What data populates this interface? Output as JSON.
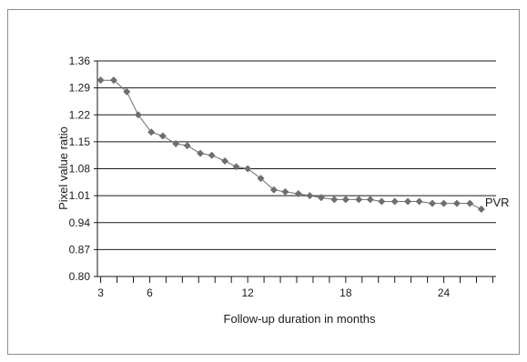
{
  "chart_data": {
    "type": "line",
    "title": "",
    "xlabel": "Follow-up duration in months",
    "ylabel": "Pixel value ratio",
    "xlim": [
      2.8,
      27.2
    ],
    "ylim": [
      0.8,
      1.36
    ],
    "x_tick_labels": [
      "3",
      "6",
      "12",
      "18",
      "24"
    ],
    "x_ticks": [
      3,
      6,
      12,
      18,
      24
    ],
    "y_tick_labels": [
      "0.80",
      "0.87",
      "0.94",
      "1.01",
      "1.08",
      "1.15",
      "1.22",
      "1.29",
      "1.36"
    ],
    "y_ticks": [
      0.8,
      0.87,
      0.94,
      1.01,
      1.08,
      1.15,
      1.22,
      1.29,
      1.36
    ],
    "grid": "horizontal",
    "series": [
      {
        "name": "PVR",
        "color": "#6e6e6e",
        "marker": "diamond",
        "points": [
          [
            3.0,
            1.31
          ],
          [
            3.8,
            1.31
          ],
          [
            4.6,
            1.28
          ],
          [
            5.3,
            1.22
          ],
          [
            6.1,
            1.175
          ],
          [
            6.8,
            1.165
          ],
          [
            7.6,
            1.145
          ],
          [
            8.3,
            1.14
          ],
          [
            9.1,
            1.12
          ],
          [
            9.8,
            1.115
          ],
          [
            10.6,
            1.1
          ],
          [
            11.3,
            1.085
          ],
          [
            12.0,
            1.08
          ],
          [
            12.8,
            1.055
          ],
          [
            13.6,
            1.025
          ],
          [
            14.3,
            1.02
          ],
          [
            15.1,
            1.015
          ],
          [
            15.8,
            1.01
          ],
          [
            16.5,
            1.005
          ],
          [
            17.3,
            1.0
          ],
          [
            18.0,
            1.0
          ],
          [
            18.8,
            1.0
          ],
          [
            19.5,
            1.0
          ],
          [
            20.2,
            0.995
          ],
          [
            21.0,
            0.995
          ],
          [
            21.8,
            0.995
          ],
          [
            22.5,
            0.995
          ],
          [
            23.3,
            0.99
          ],
          [
            24.0,
            0.99
          ],
          [
            24.8,
            0.99
          ],
          [
            25.6,
            0.99
          ],
          [
            26.3,
            0.975
          ]
        ]
      }
    ]
  }
}
